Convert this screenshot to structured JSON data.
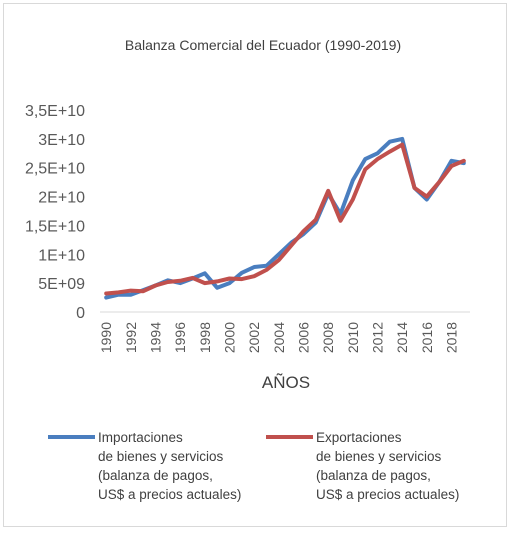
{
  "chart_data": {
    "type": "line",
    "title": "Balanza Comercial del Ecuador (1990-2019)",
    "xlabel": "AÑOS",
    "ylabel": "",
    "ylim": [
      0,
      35000000000
    ],
    "y_ticks": [
      {
        "value": 0,
        "label": "0"
      },
      {
        "value": 5000000000,
        "label": "5E+09"
      },
      {
        "value": 10000000000,
        "label": "1E+10"
      },
      {
        "value": 15000000000,
        "label": "1,5E+10"
      },
      {
        "value": 20000000000,
        "label": "2E+10"
      },
      {
        "value": 25000000000,
        "label": "2,5E+10"
      },
      {
        "value": 30000000000,
        "label": "3E+10"
      },
      {
        "value": 35000000000,
        "label": "3,5E+10"
      }
    ],
    "x_ticks": [
      1990,
      1992,
      1994,
      1996,
      1998,
      2000,
      2002,
      2004,
      2006,
      2008,
      2010,
      2012,
      2014,
      2016,
      2018
    ],
    "x": [
      1990,
      1991,
      1992,
      1993,
      1994,
      1995,
      1996,
      1997,
      1998,
      1999,
      2000,
      2001,
      2002,
      2003,
      2004,
      2005,
      2006,
      2007,
      2008,
      2009,
      2010,
      2011,
      2012,
      2013,
      2014,
      2015,
      2016,
      2017,
      2018,
      2019
    ],
    "grid": false,
    "legend_position": "bottom",
    "series": [
      {
        "name": "Importaciones de bienes y servicios (balanza de pagos, US$ a precios actuales)",
        "name_lines": [
          "Importaciones",
          "de bienes y servicios",
          "(balanza de pagos,",
          "US$ a precios actuales)"
        ],
        "color": "#4a7ebf",
        "values": [
          2500000000,
          3000000000,
          3000000000,
          3800000000,
          4600000000,
          5500000000,
          5000000000,
          5800000000,
          6700000000,
          4200000000,
          5000000000,
          6800000000,
          7800000000,
          8000000000,
          10000000000,
          12000000000,
          13500000000,
          15500000000,
          20500000000,
          17000000000,
          22800000000,
          26500000000,
          27500000000,
          29500000000,
          30000000000,
          21500000000,
          19500000000,
          22500000000,
          26200000000,
          25800000000
        ]
      },
      {
        "name": "Exportaciones de bienes y servicios (balanza de pagos, US$ a precios actuales)",
        "name_lines": [
          "Exportaciones",
          "de bienes y servicios",
          "(balanza de pagos,",
          "US$ a precios actuales)"
        ],
        "color": "#c0504d",
        "values": [
          3200000000,
          3400000000,
          3700000000,
          3600000000,
          4600000000,
          5200000000,
          5400000000,
          5900000000,
          5000000000,
          5300000000,
          5800000000,
          5700000000,
          6200000000,
          7300000000,
          9000000000,
          11500000000,
          14000000000,
          16000000000,
          21000000000,
          15800000000,
          19500000000,
          24700000000,
          26500000000,
          27800000000,
          29000000000,
          21500000000,
          20000000000,
          22500000000,
          25300000000,
          26200000000
        ]
      }
    ]
  }
}
